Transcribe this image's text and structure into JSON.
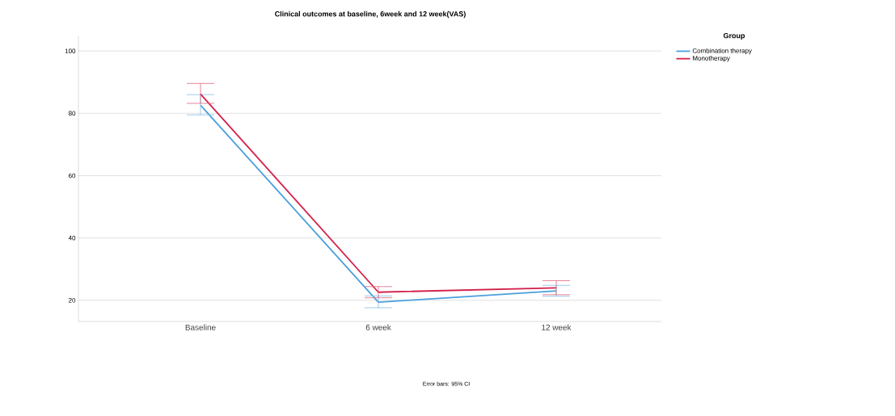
{
  "chart_data": {
    "type": "line",
    "title": "Clinical outcomes at baseline, 6week and 12 week(VAS)",
    "legend_title": "Group",
    "legend": "right",
    "grid": "y",
    "marker": "none",
    "line_style": "solid",
    "categories": [
      "Baseline",
      "6 week",
      "12 week"
    ],
    "ylim": [
      13.2,
      104.7
    ],
    "yticks": [
      20,
      40,
      60,
      80,
      100
    ],
    "series": [
      {
        "name": "Combination therapy",
        "color": "#4a9fdc",
        "values": [
          82.6,
          19.4,
          23.0
        ],
        "errors": [
          [
            79.5,
            86.0
          ],
          [
            17.6,
            21.4
          ],
          [
            21.3,
            24.8
          ]
        ]
      },
      {
        "name": "Monotherapy",
        "color": "#d4204a",
        "values": [
          86.2,
          22.6,
          24.0
        ],
        "errors": [
          [
            83.2,
            89.6
          ],
          [
            20.8,
            24.4
          ],
          [
            21.8,
            26.3
          ]
        ]
      }
    ],
    "annotations": [
      "Error bars: 95% CI"
    ]
  }
}
